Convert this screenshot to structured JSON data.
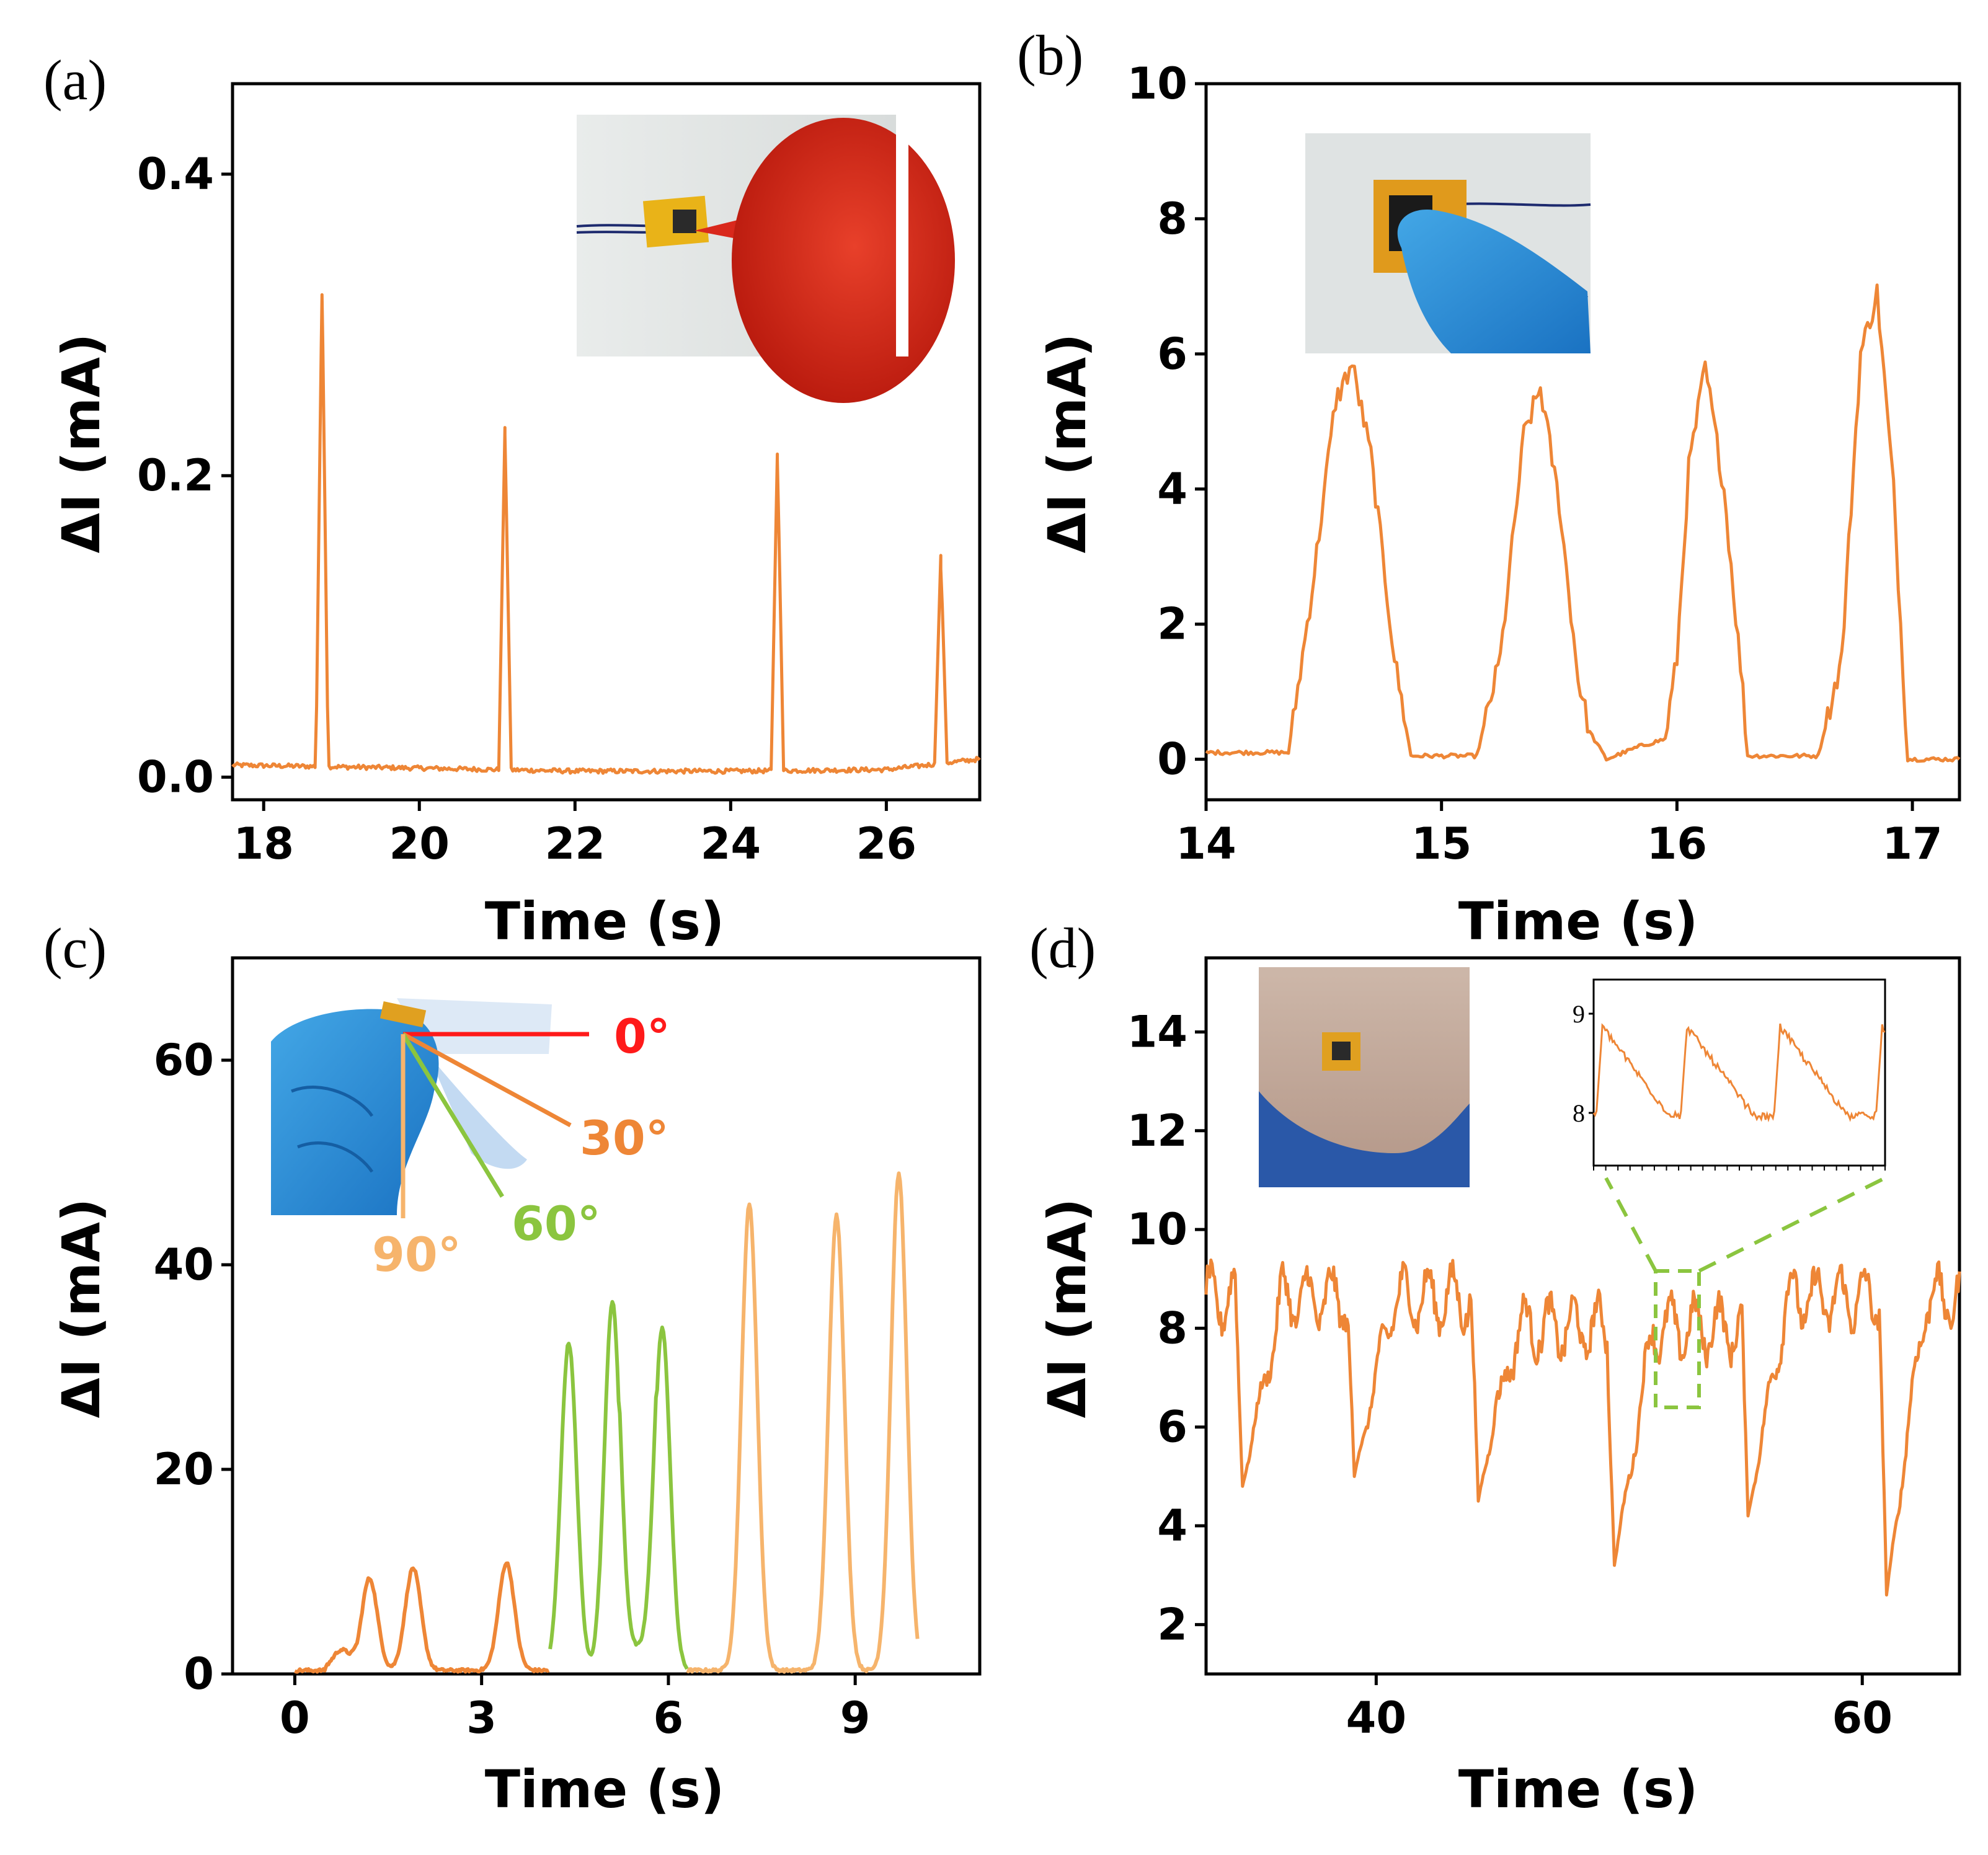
{
  "colors": {
    "line": "#ee8636",
    "green": "#8bc53f",
    "light_orange": "#f6b46c",
    "red": "#ff1a1a",
    "dashed": "#8bc53f"
  },
  "chart_data": [
    {
      "panel": "(a)",
      "type": "line",
      "xlabel": "Time (s)",
      "ylabel": "ΔI (mA)",
      "xlim": [
        17.6,
        27.2
      ],
      "ylim": [
        -0.015,
        0.46
      ],
      "xticks": [
        "18",
        "20",
        "22",
        "24",
        "26"
      ],
      "yticks": [
        "0.0",
        "0.2",
        "0.4"
      ],
      "baseline": [
        [
          17.6,
          0.008
        ],
        [
          20,
          0.006
        ],
        [
          22,
          0.004
        ],
        [
          24,
          0.004
        ],
        [
          26,
          0.005
        ],
        [
          27.2,
          0.012
        ]
      ],
      "peaks": [
        [
          18.75,
          0.32
        ],
        [
          21.1,
          0.227
        ],
        [
          24.6,
          0.21
        ],
        [
          26.7,
          0.138
        ]
      ],
      "inset": "photo"
    },
    {
      "panel": "(b)",
      "type": "line",
      "xlabel": "Time (s)",
      "ylabel": "ΔI (mA)",
      "xlim": [
        14,
        17.2
      ],
      "ylim": [
        -0.6,
        10
      ],
      "xticks": [
        "14",
        "15",
        "16",
        "17"
      ],
      "yticks": [
        "0",
        "2",
        "4",
        "6",
        "8",
        "10"
      ],
      "points": [
        [
          14.0,
          0.1
        ],
        [
          14.35,
          0.1
        ],
        [
          14.45,
          2.5
        ],
        [
          14.55,
          5.3
        ],
        [
          14.62,
          5.85
        ],
        [
          14.7,
          4.5
        ],
        [
          14.8,
          1.5
        ],
        [
          14.87,
          0.05
        ],
        [
          15.15,
          0.05
        ],
        [
          15.25,
          1.5
        ],
        [
          15.35,
          4.8
        ],
        [
          15.42,
          5.5
        ],
        [
          15.5,
          3.8
        ],
        [
          15.58,
          1.2
        ],
        [
          15.63,
          0.4
        ],
        [
          15.7,
          0.0
        ],
        [
          15.85,
          0.2
        ],
        [
          15.95,
          0.3
        ],
        [
          16.0,
          1.5
        ],
        [
          16.05,
          4.3
        ],
        [
          16.12,
          5.8
        ],
        [
          16.2,
          4.0
        ],
        [
          16.28,
          1.0
        ],
        [
          16.3,
          0.05
        ],
        [
          16.6,
          0.05
        ],
        [
          16.7,
          1.5
        ],
        [
          16.78,
          6.0
        ],
        [
          16.85,
          6.9
        ],
        [
          16.92,
          4.0
        ],
        [
          16.98,
          0.0
        ],
        [
          17.2,
          0.0
        ]
      ],
      "inset": "photo"
    },
    {
      "panel": "(c)",
      "type": "line",
      "xlabel": "Time (s)",
      "ylabel": "ΔI (mA)",
      "xlim": [
        -1,
        11
      ],
      "ylim": [
        0,
        70
      ],
      "xticks": [
        "0",
        "3",
        "6",
        "9"
      ],
      "yticks": [
        "0",
        "20",
        "40",
        "60"
      ],
      "series": [
        {
          "name": "30°",
          "peaks": [
            [
              1.2,
              9
            ],
            [
              1.9,
              10
            ],
            [
              3.4,
              10.5
            ]
          ],
          "range": [
            0,
            4.1
          ]
        },
        {
          "name": "60°",
          "peaks": [
            [
              4.4,
              32
            ],
            [
              5.1,
              36
            ],
            [
              5.9,
              33.5
            ]
          ],
          "range": [
            4.1,
            6.3
          ]
        },
        {
          "name": "90°",
          "peaks": [
            [
              7.3,
              45.5
            ],
            [
              8.7,
              44.5
            ],
            [
              9.7,
              48.5
            ]
          ],
          "range": [
            6.3,
            10
          ]
        }
      ],
      "annotations": [
        "0°",
        "30°",
        "60°",
        "90°"
      ],
      "inset": "photo"
    },
    {
      "panel": "(d)",
      "type": "line",
      "xlabel": "Time (s)",
      "ylabel": "ΔI (mA)",
      "xlim": [
        33,
        64
      ],
      "ylim": [
        1,
        15.5
      ],
      "xticks": [
        "40",
        "60"
      ],
      "yticks": [
        "2",
        "4",
        "6",
        "8",
        "10",
        "12",
        "14"
      ],
      "dips": [
        [
          34.5,
          4.8
        ],
        [
          39.1,
          5.0
        ],
        [
          44.2,
          4.5
        ],
        [
          49.8,
          3.2
        ],
        [
          55.3,
          4.2
        ],
        [
          61.0,
          2.6
        ]
      ],
      "zoom_inset_yticks": [
        "8",
        "9"
      ],
      "inset": "photo"
    }
  ]
}
